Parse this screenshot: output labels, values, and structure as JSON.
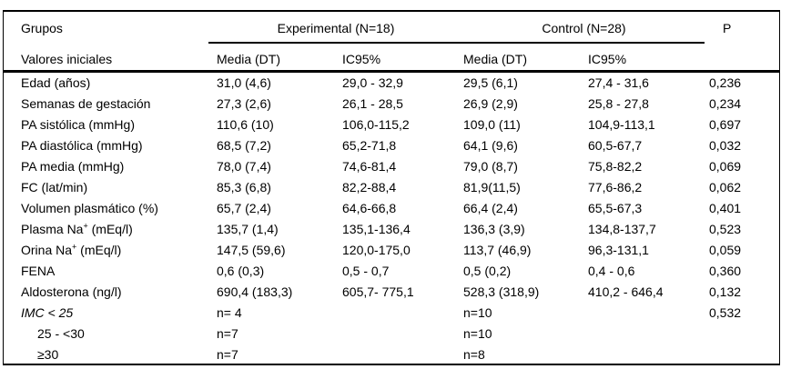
{
  "colors": {
    "text": "#000000",
    "background": "#ffffff",
    "rule": "#000000"
  },
  "table": {
    "header": {
      "grupos": "Grupos",
      "valores": "Valores iniciales",
      "experimental": "Experimental (N=18)",
      "control": "Control (N=28)",
      "p": "P",
      "exp_media": "Media (DT)",
      "exp_ic": "IC95%",
      "ctl_media": "Media (DT)",
      "ctl_ic": "IC95%"
    },
    "rows": [
      {
        "label": "Edad (años)",
        "exp_media": "31,0 (4,6)",
        "exp_ic": "29,0 - 32,9",
        "ctl_media": "29,5 (6,1)",
        "ctl_ic": "27,4 - 31,6",
        "p": "0,236"
      },
      {
        "label": "Semanas de gestación",
        "exp_media": "27,3 (2,6)",
        "exp_ic": "26,1 - 28,5",
        "ctl_media": "26,9 (2,9)",
        "ctl_ic": "25,8 - 27,8",
        "p": "0,234"
      },
      {
        "label": "PA sistólica (mmHg)",
        "exp_media": "110,6 (10)",
        "exp_ic": "106,0-115,2",
        "ctl_media": "109,0 (11)",
        "ctl_ic": "104,9-113,1",
        "p": "0,697"
      },
      {
        "label": "PA diastólica (mmHg)",
        "exp_media": "68,5 (7,2)",
        "exp_ic": "65,2-71,8",
        "ctl_media": "64,1 (9,6)",
        "ctl_ic": "60,5-67,7",
        "p": "0,032"
      },
      {
        "label": "PA media (mmHg)",
        "exp_media": "78,0 (7,4)",
        "exp_ic": "74,6-81,4",
        "ctl_media": "79,0 (8,7)",
        "ctl_ic": "75,8-82,2",
        "p": "0,069"
      },
      {
        "label": "FC (lat/min)",
        "exp_media": "85,3 (6,8)",
        "exp_ic": "82,2-88,4",
        "ctl_media": "81,9(11,5)",
        "ctl_ic": "77,6-86,2",
        "p": "0,062"
      },
      {
        "label": "Volumen plasmático (%)",
        "exp_media": "65,7 (2,4)",
        "exp_ic": "64,6-66,8",
        "ctl_media": "66,4 (2,4)",
        "ctl_ic": "65,5-67,3",
        "p": "0,401"
      },
      {
        "label_pre": "Plasma Na",
        "label_sup": "+",
        "label_post": " (mEq/l)",
        "exp_media": "135,7 (1,4)",
        "exp_ic": "135,1-136,4",
        "ctl_media": "136,3 (3,9)",
        "ctl_ic": "134,8-137,7",
        "p": "0,523"
      },
      {
        "label_pre": "Orina Na",
        "label_sup": "+",
        "label_post": " (mEq/l)",
        "exp_media": "147,5 (59,6)",
        "exp_ic": "120,0-175,0",
        "ctl_media": "113,7 (46,9)",
        "ctl_ic": "96,3-131,1",
        "p": "0,059"
      },
      {
        "label": "FENA",
        "exp_media": "0,6 (0,3)",
        "exp_ic": "0,5 - 0,7",
        "ctl_media": "0,5 (0,2)",
        "ctl_ic": "0,4 - 0,6",
        "p": "0,360"
      },
      {
        "label": "Aldosterona (ng/l)",
        "exp_media": "690,4 (183,3)",
        "exp_ic": "605,7- 775,1",
        "ctl_media": "528,3 (318,9)",
        "ctl_ic": "410,2 - 646,4",
        "p": "0,132"
      },
      {
        "label": "IMC < 25",
        "exp_media": "n= 4",
        "exp_ic": "",
        "ctl_media": "n=10",
        "ctl_ic": "",
        "p": "0,532"
      },
      {
        "label": "25 - <30",
        "exp_media": "n=7",
        "exp_ic": "",
        "ctl_media": "n=10",
        "ctl_ic": "",
        "p": ""
      },
      {
        "label": "≥30",
        "exp_media": "n=7",
        "exp_ic": "",
        "ctl_media": "n=8",
        "ctl_ic": "",
        "p": ""
      }
    ]
  }
}
